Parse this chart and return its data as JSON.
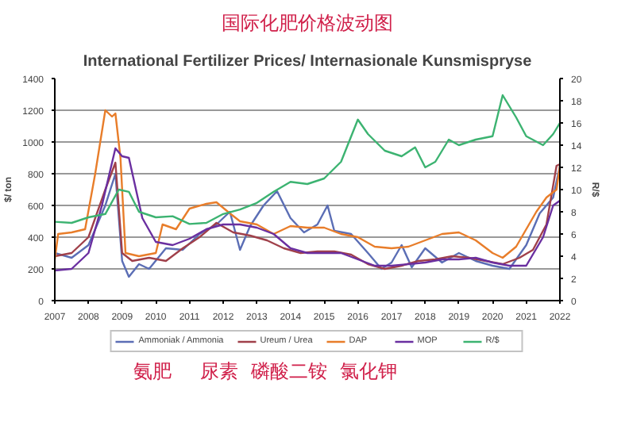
{
  "chart_data": {
    "type": "line",
    "title": "国际化肥价格波动图",
    "subtitle": "International Fertilizer Prices/ Internasionale Kunsmispryse",
    "ylabel": "$/ ton",
    "y2label": "R/$",
    "xlim": [
      2007,
      2022
    ],
    "xticks": [
      2007,
      2008,
      2009,
      2010,
      2011,
      2012,
      2013,
      2014,
      2015,
      2016,
      2017,
      2018,
      2019,
      2020,
      2021,
      2022
    ],
    "ylim": [
      0,
      1400
    ],
    "yticks": [
      0,
      200,
      400,
      600,
      800,
      1000,
      1200,
      1400
    ],
    "y2lim": [
      0,
      20
    ],
    "y2ticks": [
      0,
      2,
      4,
      6,
      8,
      10,
      12,
      14,
      16,
      18,
      20
    ],
    "grid": "y",
    "legend": "bottom",
    "marker": "none",
    "line_style": "solid",
    "annotations": [
      "氨肥",
      "尿素",
      "磷酸二铵",
      "氯化钾"
    ],
    "series": [
      {
        "name": "Ammoniak / Ammonia",
        "color": "#5b6eb5",
        "x": [
          2007,
          2007.5,
          2008,
          2008.5,
          2008.8,
          2009,
          2009.2,
          2009.5,
          2009.8,
          2010.3,
          2010.8,
          2011.3,
          2011.8,
          2012.2,
          2012.5,
          2012.8,
          2013.2,
          2013.6,
          2014,
          2014.4,
          2014.8,
          2015.1,
          2015.3,
          2015.8,
          2016.3,
          2016.7,
          2017,
          2017.3,
          2017.6,
          2018,
          2018.5,
          2019,
          2019.5,
          2020,
          2020.5,
          2021,
          2021.4,
          2021.8,
          2022
        ],
        "values": [
          300,
          270,
          350,
          600,
          800,
          250,
          150,
          230,
          200,
          330,
          320,
          420,
          480,
          560,
          320,
          470,
          600,
          690,
          520,
          430,
          480,
          600,
          440,
          420,
          300,
          200,
          240,
          350,
          210,
          330,
          240,
          300,
          250,
          220,
          200,
          350,
          550,
          650,
          850
        ]
      },
      {
        "name": "Ureum / Urea",
        "color": "#a0404a",
        "x": [
          2007,
          2007.5,
          2008,
          2008.5,
          2008.8,
          2009,
          2009.3,
          2009.8,
          2010.3,
          2010.8,
          2011.3,
          2011.8,
          2012.3,
          2012.8,
          2013.3,
          2013.8,
          2014.3,
          2014.8,
          2015.3,
          2015.8,
          2016.3,
          2016.8,
          2017.3,
          2017.8,
          2018.3,
          2018.8,
          2019.3,
          2019.8,
          2020.3,
          2020.8,
          2021.2,
          2021.6,
          2021.9,
          2022
        ],
        "values": [
          280,
          300,
          400,
          700,
          870,
          300,
          250,
          270,
          250,
          330,
          400,
          490,
          430,
          410,
          380,
          330,
          300,
          310,
          310,
          290,
          230,
          200,
          220,
          250,
          260,
          280,
          270,
          250,
          230,
          270,
          320,
          480,
          850,
          860
        ]
      },
      {
        "name": "DAP",
        "color": "#e87d2a",
        "x": [
          2007,
          2007.1,
          2007.5,
          2007.9,
          2008.2,
          2008.5,
          2008.7,
          2008.8,
          2008.95,
          2009.1,
          2009.5,
          2010,
          2010.2,
          2010.6,
          2011,
          2011.5,
          2011.8,
          2012.2,
          2012.5,
          2013,
          2013.5,
          2014,
          2014.5,
          2015,
          2015.5,
          2016,
          2016.5,
          2017,
          2017.5,
          2018,
          2018.5,
          2019,
          2019.5,
          2020,
          2020.3,
          2020.7,
          2021,
          2021.3,
          2021.6,
          2021.9,
          2022
        ],
        "values": [
          260,
          420,
          430,
          450,
          800,
          1200,
          1160,
          1180,
          900,
          300,
          280,
          300,
          480,
          450,
          580,
          610,
          620,
          550,
          500,
          480,
          420,
          470,
          460,
          460,
          420,
          400,
          340,
          330,
          340,
          380,
          420,
          430,
          380,
          300,
          270,
          340,
          450,
          560,
          650,
          700,
          850
        ]
      },
      {
        "name": "MOP",
        "color": "#6a2fa0",
        "x": [
          2007,
          2007.5,
          2008,
          2008.4,
          2008.8,
          2009,
          2009.2,
          2009.6,
          2010,
          2010.5,
          2011,
          2011.5,
          2012,
          2012.5,
          2013,
          2013.5,
          2014,
          2014.5,
          2015,
          2015.5,
          2016,
          2016.5,
          2017,
          2017.5,
          2018,
          2018.5,
          2019,
          2019.5,
          2020,
          2020.5,
          2021,
          2021.5,
          2021.8,
          2022
        ],
        "values": [
          190,
          200,
          300,
          600,
          960,
          910,
          900,
          520,
          370,
          350,
          390,
          450,
          480,
          480,
          460,
          420,
          330,
          300,
          300,
          300,
          260,
          220,
          220,
          230,
          240,
          260,
          260,
          270,
          240,
          220,
          220,
          400,
          600,
          630
        ]
      },
      {
        "name": "R/$",
        "color": "#3cb371",
        "axis": "y2",
        "x": [
          2007,
          2007.5,
          2008,
          2008.5,
          2008.9,
          2009.2,
          2009.5,
          2010,
          2010.5,
          2011,
          2011.5,
          2012,
          2012.5,
          2013,
          2013.5,
          2014,
          2014.5,
          2015,
          2015.5,
          2016,
          2016.3,
          2016.8,
          2017.3,
          2017.7,
          2018,
          2018.3,
          2018.7,
          2019,
          2019.5,
          2020,
          2020.3,
          2020.7,
          2021,
          2021.5,
          2021.8,
          2022
        ],
        "values": [
          7.1,
          7.0,
          7.5,
          7.8,
          10.0,
          9.8,
          8.0,
          7.5,
          7.6,
          6.9,
          7.0,
          7.8,
          8.2,
          8.8,
          9.8,
          10.7,
          10.5,
          11.0,
          12.5,
          16.3,
          15.0,
          13.5,
          13.0,
          13.8,
          12.0,
          12.5,
          14.5,
          14.0,
          14.5,
          14.8,
          18.5,
          16.5,
          14.8,
          14.0,
          15.0,
          16.0
        ]
      }
    ]
  }
}
